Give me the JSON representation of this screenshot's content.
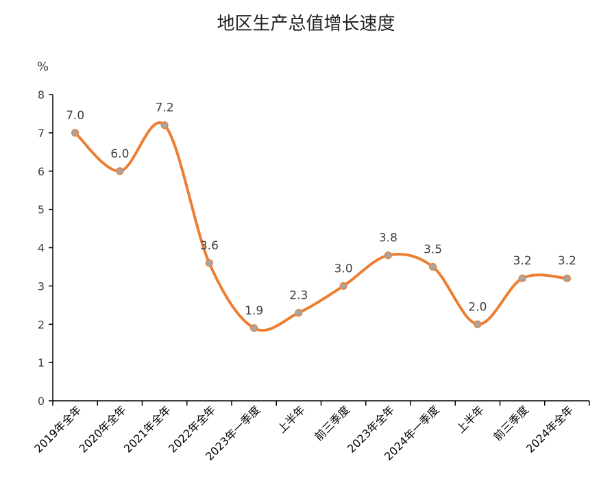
{
  "chart_data": {
    "type": "line",
    "title": "地区生产总值增长速度",
    "ylabel": "%",
    "xlabel": "",
    "categories": [
      "2019年全年",
      "2020年全年",
      "2021年全年",
      "2022年全年",
      "2023年一季度",
      "上半年",
      "前三季度",
      "2023年全年",
      "2024年一季度",
      "上半年",
      "前三季度",
      "2024年全年"
    ],
    "series": [
      {
        "values": [
          7.0,
          6.0,
          7.2,
          3.6,
          1.9,
          2.3,
          3.0,
          3.8,
          3.5,
          2.0,
          3.2,
          3.2
        ],
        "labels": [
          "7.0",
          "6.0",
          "7.2",
          "3.6",
          "1.9",
          "2.3",
          "3.0",
          "3.8",
          "3.5",
          "2.0",
          "3.2",
          "3.2"
        ]
      }
    ],
    "ylim": [
      0,
      8
    ],
    "yticks": [
      "0",
      "1",
      "2",
      "3",
      "4",
      "5",
      "6",
      "7",
      "8"
    ],
    "grid": false,
    "smooth": true,
    "line_color": "#ED7D31",
    "marker_color": "#A5A5A5"
  }
}
